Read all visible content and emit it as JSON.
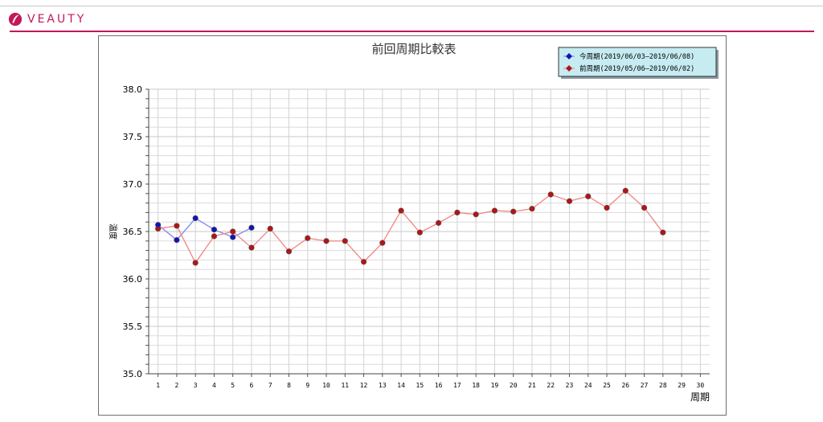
{
  "brand": {
    "name": "VEAUTY",
    "logo_icon": "veauty-logo-icon",
    "accent": "#c2185b"
  },
  "chart_data": {
    "type": "line",
    "title": "前回周期比較表",
    "xlabel": "周期",
    "ylabel": "温度",
    "ylim": [
      35.0,
      38.0
    ],
    "y_ticks": [
      "35.0",
      "35.5",
      "36.0",
      "36.5",
      "37.0",
      "37.5",
      "38.0"
    ],
    "x": [
      1,
      2,
      3,
      4,
      5,
      6,
      7,
      8,
      9,
      10,
      11,
      12,
      13,
      14,
      15,
      16,
      17,
      18,
      19,
      20,
      21,
      22,
      23,
      24,
      25,
      26,
      27,
      28,
      29,
      30
    ],
    "legend_position": "top-right",
    "grid": true,
    "series": [
      {
        "name": "今周期(2019/06/03—2019/06/08)",
        "line_color": "#8c8cf0",
        "marker_color": "#1414b4",
        "x": [
          1,
          2,
          3,
          4,
          5,
          6
        ],
        "values": [
          36.57,
          36.41,
          36.64,
          36.52,
          36.44,
          36.54
        ]
      },
      {
        "name": "前周期(2019/05/06—2019/06/02)",
        "line_color": "#f08c8c",
        "marker_color": "#b41414",
        "x": [
          1,
          2,
          3,
          4,
          5,
          6,
          7,
          8,
          9,
          10,
          11,
          12,
          13,
          14,
          15,
          16,
          17,
          18,
          19,
          20,
          21,
          22,
          23,
          24,
          25,
          26,
          27,
          28
        ],
        "values": [
          36.53,
          36.56,
          36.17,
          36.45,
          36.5,
          36.33,
          36.53,
          36.29,
          36.43,
          36.4,
          36.4,
          36.18,
          36.38,
          36.72,
          36.49,
          36.59,
          36.7,
          36.68,
          36.72,
          36.71,
          36.74,
          36.89,
          36.82,
          36.87,
          36.75,
          36.93,
          36.75,
          36.49
        ]
      }
    ]
  }
}
